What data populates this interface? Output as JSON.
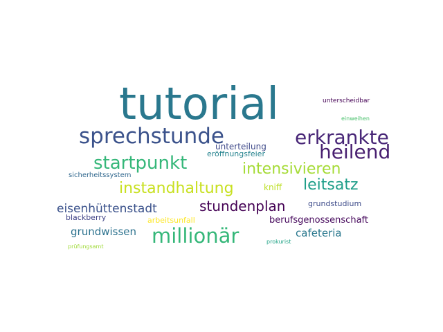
{
  "words": [
    {
      "text": "tutorial",
      "color": "#2a788e"
    },
    {
      "text": "sprechstunde",
      "color": "#3b528b"
    },
    {
      "text": "erkrankte",
      "color": "#482677"
    },
    {
      "text": "heilend",
      "color": "#481f70"
    },
    {
      "text": "startpunkt",
      "color": "#35b779"
    },
    {
      "text": "intensivieren",
      "color": "#a5db36"
    },
    {
      "text": "instandhaltung",
      "color": "#c8e020"
    },
    {
      "text": "leitsatz",
      "color": "#1f9e89"
    },
    {
      "text": "stundenplan",
      "color": "#440154"
    },
    {
      "text": "eisenhüttenstadt",
      "color": "#3b528b"
    },
    {
      "text": "millionär",
      "color": "#35b779"
    },
    {
      "text": "grundwissen",
      "color": "#2c728e"
    },
    {
      "text": "cafeteria",
      "color": "#2a788e"
    },
    {
      "text": "berufsgenossenschaft",
      "color": "#46085c"
    },
    {
      "text": "unterteilung",
      "color": "#3e4989"
    },
    {
      "text": "eröffnungsfeier",
      "color": "#25838e"
    },
    {
      "text": "kniff",
      "color": "#bddf26"
    },
    {
      "text": "grundstudium",
      "color": "#3e4c8a"
    },
    {
      "text": "blackberry",
      "color": "#414487"
    },
    {
      "text": "arbeitsunfall",
      "color": "#fde725"
    },
    {
      "text": "sicherheitssystem",
      "color": "#31688e"
    },
    {
      "text": "unterscheidbar",
      "color": "#440154"
    },
    {
      "text": "einweihen",
      "color": "#4ac16d"
    },
    {
      "text": "prüfungsamt",
      "color": "#a0da39"
    },
    {
      "text": "prokurist",
      "color": "#20a386"
    }
  ]
}
